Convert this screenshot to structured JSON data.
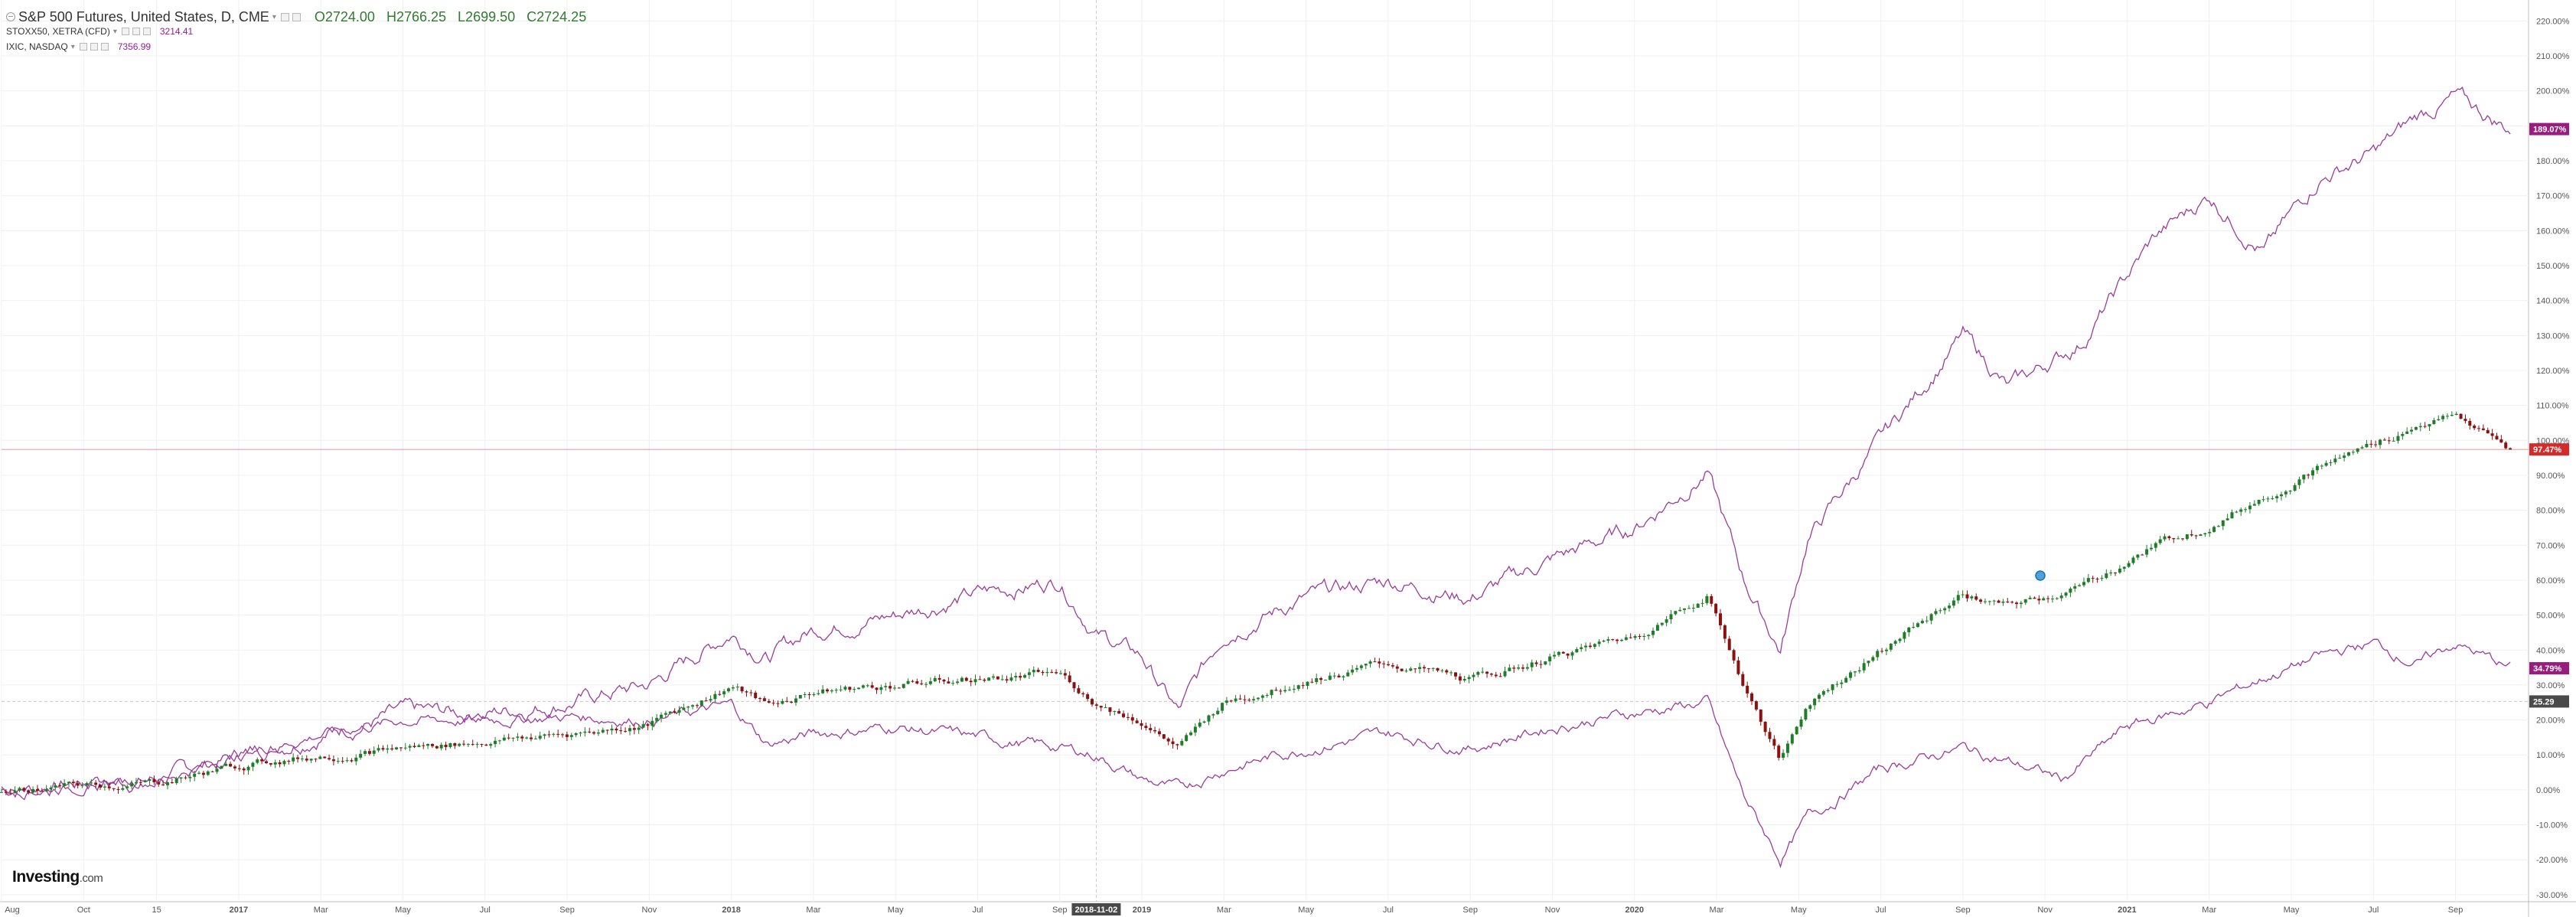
{
  "header": {
    "symbol": "S&P 500 Futures, United States, D, CME",
    "open": "O2724.00",
    "high": "H2766.25",
    "low": "L2699.50",
    "close": "C2724.25"
  },
  "overlays": [
    {
      "label": "STOXX50, XETRA (CFD)",
      "value": "3214.41"
    },
    {
      "label": "IXIC, NASDAQ",
      "value": "7356.99"
    }
  ],
  "logo": {
    "main": "Investing",
    "suffix": ".com"
  },
  "colors": {
    "up": "#1f7d28",
    "down": "#8b1010",
    "compare": "#9b3c9b",
    "compare_badge": "#9a1c7e",
    "hline": "#e8a0a0",
    "crosshair": "#c8c8c8",
    "axis_text": "#555555",
    "grid": "#f0f0f0"
  },
  "chart_data": {
    "type": "line",
    "ylabel_unit": "%",
    "ylim": [
      -32,
      226
    ],
    "y_ticks": [
      "-30.00%",
      "-20.00%",
      "-10.00%",
      "0.00%",
      "10.00%",
      "20.00%",
      "30.00%",
      "40.00%",
      "50.00%",
      "60.00%",
      "70.00%",
      "80.00%",
      "90.00%",
      "100.00%",
      "110.00%",
      "120.00%",
      "130.00%",
      "140.00%",
      "150.00%",
      "160.00%",
      "170.00%",
      "180.00%",
      "190.00%",
      "200.00%",
      "210.00%",
      "220.00%"
    ],
    "x_ticks": [
      "Aug",
      "Oct",
      "15",
      "2017",
      "Mar",
      "May",
      "Jul",
      "Sep",
      "Nov",
      "2018",
      "Mar",
      "May",
      "Jul",
      "Sep",
      "2019",
      "Mar",
      "May",
      "Jul",
      "Sep",
      "Nov",
      "2020",
      "Mar",
      "May",
      "Jul",
      "Sep",
      "Nov",
      "2021",
      "Mar",
      "May",
      "Jul",
      "Sep"
    ],
    "x_tick_idx": [
      0,
      9,
      17,
      26,
      35,
      44,
      53,
      62,
      71,
      80,
      89,
      98,
      107,
      116,
      125,
      134,
      143,
      152,
      161,
      170,
      179,
      188,
      197,
      206,
      215,
      224,
      233,
      242,
      251,
      260,
      269
    ],
    "crosshair_label": "2018-11-02",
    "crosshair_idx": 120,
    "hline_value": 97.4,
    "series": [
      {
        "name": "IXIC, NASDAQ",
        "badge": "189.07%",
        "points": [
          [
            0,
            0
          ],
          [
            8,
            2
          ],
          [
            17,
            3
          ],
          [
            26,
            10
          ],
          [
            35,
            16
          ],
          [
            44,
            22
          ],
          [
            53,
            22
          ],
          [
            62,
            25
          ],
          [
            71,
            30
          ],
          [
            80,
            45
          ],
          [
            84,
            38
          ],
          [
            89,
            46
          ],
          [
            98,
            50
          ],
          [
            107,
            56
          ],
          [
            116,
            60
          ],
          [
            120,
            45
          ],
          [
            125,
            38
          ],
          [
            129,
            22
          ],
          [
            134,
            45
          ],
          [
            143,
            55
          ],
          [
            152,
            60
          ],
          [
            161,
            55
          ],
          [
            170,
            66
          ],
          [
            179,
            75
          ],
          [
            187,
            91
          ],
          [
            191,
            60
          ],
          [
            195,
            40
          ],
          [
            198,
            72
          ],
          [
            206,
            100
          ],
          [
            215,
            130
          ],
          [
            220,
            115
          ],
          [
            228,
            128
          ],
          [
            236,
            158
          ],
          [
            242,
            170
          ],
          [
            248,
            154
          ],
          [
            254,
            175
          ],
          [
            260,
            182
          ],
          [
            265,
            193
          ],
          [
            269,
            198
          ],
          [
            275,
            189
          ]
        ]
      },
      {
        "name": "S&P 500 Futures",
        "badge": "97.47%",
        "points": [
          [
            0,
            0
          ],
          [
            8,
            1
          ],
          [
            17,
            2
          ],
          [
            26,
            7
          ],
          [
            35,
            10
          ],
          [
            44,
            12
          ],
          [
            53,
            14
          ],
          [
            62,
            16
          ],
          [
            71,
            19
          ],
          [
            80,
            30
          ],
          [
            84,
            24
          ],
          [
            89,
            28
          ],
          [
            98,
            30
          ],
          [
            107,
            32
          ],
          [
            116,
            33
          ],
          [
            120,
            25
          ],
          [
            125,
            20
          ],
          [
            129,
            12
          ],
          [
            134,
            25
          ],
          [
            143,
            32
          ],
          [
            152,
            36
          ],
          [
            161,
            31
          ],
          [
            170,
            38
          ],
          [
            179,
            44
          ],
          [
            187,
            56
          ],
          [
            191,
            30
          ],
          [
            195,
            8
          ],
          [
            198,
            25
          ],
          [
            206,
            40
          ],
          [
            215,
            56
          ],
          [
            220,
            52
          ],
          [
            228,
            58
          ],
          [
            236,
            70
          ],
          [
            242,
            76
          ],
          [
            248,
            84
          ],
          [
            254,
            92
          ],
          [
            260,
            99
          ],
          [
            265,
            105
          ],
          [
            269,
            107
          ],
          [
            275,
            97.5
          ]
        ]
      },
      {
        "name": "STOXX50, XETRA (CFD)",
        "badge": "34.79%",
        "points": [
          [
            0,
            0
          ],
          [
            8,
            1
          ],
          [
            17,
            3
          ],
          [
            26,
            10
          ],
          [
            35,
            16
          ],
          [
            44,
            20
          ],
          [
            53,
            20
          ],
          [
            62,
            21
          ],
          [
            71,
            20
          ],
          [
            80,
            24
          ],
          [
            84,
            13
          ],
          [
            89,
            16
          ],
          [
            98,
            18
          ],
          [
            107,
            15
          ],
          [
            116,
            12
          ],
          [
            120,
            10
          ],
          [
            125,
            3
          ],
          [
            129,
            0
          ],
          [
            134,
            6
          ],
          [
            143,
            12
          ],
          [
            152,
            16
          ],
          [
            161,
            12
          ],
          [
            170,
            18
          ],
          [
            179,
            22
          ],
          [
            187,
            25
          ],
          [
            191,
            -2
          ],
          [
            195,
            -20
          ],
          [
            198,
            -8
          ],
          [
            206,
            6
          ],
          [
            215,
            12
          ],
          [
            220,
            8
          ],
          [
            226,
            3
          ],
          [
            233,
            18
          ],
          [
            242,
            25
          ],
          [
            248,
            32
          ],
          [
            254,
            38
          ],
          [
            260,
            42
          ],
          [
            265,
            36
          ],
          [
            269,
            42
          ],
          [
            275,
            34.8
          ]
        ]
      }
    ],
    "last_close_badge": "25.29",
    "last_close_value": 25.29
  }
}
